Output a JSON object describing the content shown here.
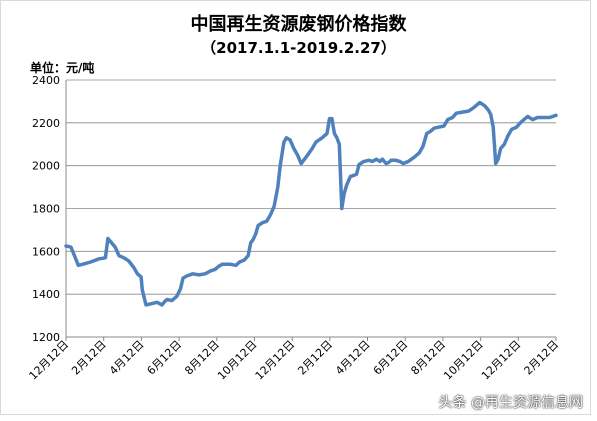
{
  "chart_data": {
    "type": "line",
    "title": "中国再生资源废钢价格指数",
    "subtitle": "（2017.1.1-2019.2.27）",
    "ylabel": "单位：元/吨",
    "ylim": [
      1200,
      2400
    ],
    "yticks": [
      1200,
      1400,
      1600,
      1800,
      2000,
      2200,
      2400
    ],
    "grid": "horizontal",
    "line_color": "#4f81bd",
    "x_labels": [
      "12月12日",
      "2月12日",
      "4月12日",
      "6月12日",
      "8月12日",
      "10月12日",
      "12月12日",
      "2月12日",
      "4月12日",
      "6月12日",
      "8月12日",
      "10月12日",
      "12月12日",
      "2月12日"
    ],
    "series": [
      {
        "values": [
          [
            0,
            1625
          ],
          [
            4,
            1620
          ],
          [
            7,
            1578
          ],
          [
            10,
            1535
          ],
          [
            14,
            1540
          ],
          [
            20,
            1550
          ],
          [
            27,
            1565
          ],
          [
            32,
            1570
          ],
          [
            34,
            1660
          ],
          [
            37,
            1640
          ],
          [
            40,
            1620
          ],
          [
            43,
            1580
          ],
          [
            47,
            1570
          ],
          [
            51,
            1555
          ],
          [
            55,
            1525
          ],
          [
            58,
            1495
          ],
          [
            61,
            1480
          ],
          [
            62,
            1420
          ],
          [
            65,
            1350
          ],
          [
            69,
            1355
          ],
          [
            74,
            1362
          ],
          [
            78,
            1350
          ],
          [
            80,
            1365
          ],
          [
            82,
            1375
          ],
          [
            86,
            1370
          ],
          [
            90,
            1390
          ],
          [
            93,
            1425
          ],
          [
            95,
            1475
          ],
          [
            98,
            1485
          ],
          [
            103,
            1495
          ],
          [
            108,
            1490
          ],
          [
            113,
            1495
          ],
          [
            118,
            1510
          ],
          [
            121,
            1515
          ],
          [
            124,
            1530
          ],
          [
            127,
            1540
          ],
          [
            133,
            1540
          ],
          [
            138,
            1535
          ],
          [
            141,
            1550
          ],
          [
            145,
            1560
          ],
          [
            148,
            1580
          ],
          [
            150,
            1640
          ],
          [
            152,
            1655
          ],
          [
            154,
            1680
          ],
          [
            156,
            1720
          ],
          [
            160,
            1735
          ],
          [
            163,
            1740
          ],
          [
            166,
            1770
          ],
          [
            169,
            1810
          ],
          [
            172,
            1900
          ],
          [
            174,
            2000
          ],
          [
            177,
            2110
          ],
          [
            179,
            2130
          ],
          [
            182,
            2120
          ],
          [
            185,
            2080
          ],
          [
            188,
            2050
          ],
          [
            191,
            2010
          ],
          [
            195,
            2040
          ],
          [
            200,
            2080
          ],
          [
            203,
            2110
          ],
          [
            208,
            2130
          ],
          [
            212,
            2150
          ],
          [
            214,
            2220
          ],
          [
            216,
            2220
          ],
          [
            218,
            2150
          ],
          [
            220,
            2130
          ],
          [
            222,
            2100
          ],
          [
            224,
            1800
          ],
          [
            226,
            1870
          ],
          [
            228,
            1910
          ],
          [
            231,
            1950
          ],
          [
            234,
            1955
          ],
          [
            236,
            1960
          ],
          [
            238,
            2005
          ],
          [
            242,
            2020
          ],
          [
            246,
            2025
          ],
          [
            249,
            2020
          ],
          [
            252,
            2030
          ],
          [
            255,
            2020
          ],
          [
            257,
            2030
          ],
          [
            260,
            2010
          ],
          [
            262,
            2015
          ],
          [
            264,
            2025
          ],
          [
            268,
            2025
          ],
          [
            271,
            2020
          ],
          [
            274,
            2010
          ],
          [
            278,
            2020
          ],
          [
            283,
            2040
          ],
          [
            287,
            2060
          ],
          [
            290,
            2090
          ],
          [
            293,
            2150
          ],
          [
            296,
            2160
          ],
          [
            299,
            2175
          ],
          [
            303,
            2180
          ],
          [
            307,
            2185
          ],
          [
            310,
            2215
          ],
          [
            314,
            2225
          ],
          [
            317,
            2245
          ],
          [
            322,
            2250
          ],
          [
            327,
            2255
          ],
          [
            331,
            2270
          ],
          [
            336,
            2295
          ],
          [
            340,
            2280
          ],
          [
            343,
            2260
          ],
          [
            345,
            2240
          ],
          [
            347,
            2180
          ],
          [
            349,
            2010
          ],
          [
            351,
            2030
          ],
          [
            353,
            2080
          ],
          [
            356,
            2100
          ],
          [
            359,
            2140
          ],
          [
            362,
            2170
          ],
          [
            366,
            2180
          ],
          [
            369,
            2200
          ],
          [
            372,
            2215
          ],
          [
            375,
            2230
          ],
          [
            379,
            2215
          ],
          [
            383,
            2225
          ],
          [
            388,
            2225
          ],
          [
            393,
            2225
          ],
          [
            398,
            2235
          ]
        ]
      }
    ]
  },
  "watermark": "头条 @再生资源信息网"
}
